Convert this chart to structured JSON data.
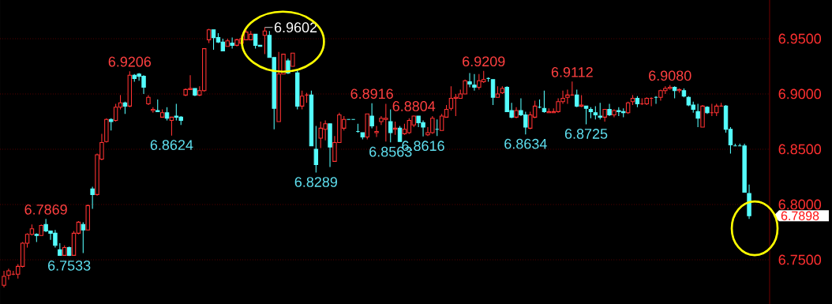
{
  "chart_data": {
    "type": "candlestick",
    "categories": [
      null,
      null,
      null,
      null,
      null,
      null,
      null,
      null,
      null,
      null,
      null,
      null,
      null,
      null,
      null,
      null,
      null,
      null,
      null,
      null,
      null,
      null,
      null,
      null,
      null,
      null,
      null,
      null,
      null,
      null,
      null,
      null,
      null,
      null,
      null,
      null,
      null,
      null,
      null,
      null,
      null,
      null,
      null,
      null,
      null,
      null,
      null,
      null,
      null,
      null,
      null,
      null,
      null,
      null,
      null,
      null,
      null,
      null,
      null,
      null,
      null,
      null,
      null,
      null,
      null,
      null,
      null,
      null,
      null,
      null,
      null,
      null,
      null,
      null,
      null,
      null,
      null,
      null,
      null,
      null,
      null,
      null,
      null,
      null,
      null,
      null,
      null,
      null,
      null,
      null,
      null,
      null,
      null,
      null,
      null,
      null,
      null,
      null,
      null,
      null,
      null,
      null,
      null,
      null,
      null,
      null,
      null,
      null,
      null,
      null,
      null,
      null,
      null,
      null,
      null,
      null,
      null,
      null,
      null,
      null,
      null,
      null,
      null,
      null,
      null,
      null,
      null,
      null,
      null,
      null,
      null,
      null,
      null,
      null,
      null,
      null,
      null,
      null,
      null,
      null,
      null,
      null,
      null,
      null,
      null,
      null,
      null,
      null,
      null,
      null,
      null,
      null,
      null,
      null,
      null,
      null,
      null,
      null,
      null,
      null,
      null
    ],
    "ohlc": [
      [
        6.727,
        6.74,
        6.725,
        6.735
      ],
      [
        6.736,
        6.742,
        6.732,
        6.74
      ],
      [
        6.737,
        6.74,
        6.736,
        6.737
      ],
      [
        6.737,
        6.746,
        6.733,
        6.744
      ],
      [
        6.744,
        6.766,
        6.743,
        6.765
      ],
      [
        6.765,
        6.774,
        6.761,
        6.773
      ],
      [
        6.773,
        6.782,
        6.772,
        6.778
      ],
      [
        6.773,
        6.774,
        6.766,
        6.772
      ],
      [
        6.772,
        6.782,
        6.772,
        6.781
      ],
      [
        6.782,
        6.7869,
        6.775,
        6.776
      ],
      [
        6.776,
        6.776,
        6.768,
        6.774
      ],
      [
        6.774,
        6.777,
        6.761,
        6.763
      ],
      [
        6.759,
        6.765,
        6.754,
        6.754
      ],
      [
        6.754,
        6.763,
        6.754,
        6.761
      ],
      [
        6.761,
        6.762,
        6.7533,
        6.754
      ],
      [
        6.754,
        6.776,
        6.754,
        6.774
      ],
      [
        6.774,
        6.785,
        6.773,
        6.784
      ],
      [
        6.782,
        6.784,
        6.756,
        6.777
      ],
      [
        6.777,
        6.8,
        6.777,
        6.799
      ],
      [
        6.814,
        6.816,
        6.796,
        6.809
      ],
      [
        6.809,
        6.846,
        6.808,
        6.845
      ],
      [
        6.841,
        6.864,
        6.84,
        6.856
      ],
      [
        6.857,
        6.878,
        6.856,
        6.877
      ],
      [
        6.877,
        6.878,
        6.867,
        6.875
      ],
      [
        6.876,
        6.891,
        6.875,
        6.888
      ],
      [
        6.888,
        6.899,
        6.886,
        6.892
      ],
      [
        6.892,
        6.893,
        6.882,
        6.889
      ],
      [
        6.889,
        6.9206,
        6.888,
        6.917
      ],
      [
        6.917,
        6.918,
        6.911,
        6.914
      ],
      [
        6.918,
        6.919,
        6.912,
        6.916
      ],
      [
        6.916,
        6.917,
        6.9,
        6.906
      ],
      [
        6.891,
        6.899,
        6.89,
        6.897
      ],
      [
        6.885,
        6.888,
        6.883,
        6.886
      ],
      [
        6.885,
        6.895,
        6.884,
        6.884
      ],
      [
        6.879,
        6.886,
        6.879,
        6.883
      ],
      [
        6.883,
        6.888,
        6.876,
        6.878
      ],
      [
        6.876,
        6.879,
        6.8624,
        6.879
      ],
      [
        6.88,
        6.891,
        6.876,
        6.879
      ],
      [
        6.879,
        6.88,
        6.872,
        6.876
      ],
      [
        6.899,
        6.905,
        6.898,
        6.904
      ],
      [
        6.904,
        6.917,
        6.904,
        6.905
      ],
      [
        6.905,
        6.905,
        6.898,
        6.899
      ],
      [
        6.899,
        6.907,
        6.898,
        6.903
      ],
      [
        6.903,
        6.941,
        6.902,
        6.941
      ],
      [
        6.949,
        6.959,
        6.946,
        6.958
      ],
      [
        6.958,
        6.958,
        6.94,
        6.951
      ],
      [
        6.951,
        6.955,
        6.946,
        6.947
      ],
      [
        6.947,
        6.95,
        6.939,
        6.939
      ],
      [
        6.943,
        6.95,
        6.943,
        6.948
      ],
      [
        6.946,
        6.951,
        6.941,
        6.944
      ],
      [
        6.944,
        6.95,
        6.943,
        6.949
      ],
      [
        6.946,
        6.953,
        6.945,
        6.95
      ],
      [
        6.949,
        6.958,
        6.949,
        6.956
      ],
      [
        6.949,
        6.957,
        6.949,
        6.954
      ],
      [
        6.954,
        6.954,
        6.941,
        6.944
      ],
      [
        6.944,
        6.944,
        6.943,
        6.943
      ],
      [
        6.953,
        6.9602,
        6.936,
        6.957
      ],
      [
        6.953,
        6.957,
        6.933,
        6.933
      ],
      [
        6.933,
        6.933,
        6.868,
        6.887
      ],
      [
        6.875,
        6.938,
        6.875,
        6.918
      ],
      [
        6.918,
        6.936,
        6.918,
        6.936
      ],
      [
        6.93,
        6.932,
        6.918,
        6.919
      ],
      [
        6.925,
        6.937,
        6.925,
        6.937
      ],
      [
        6.919,
        6.922,
        6.886,
        6.889
      ],
      [
        6.889,
        6.903,
        6.886,
        6.898
      ],
      [
        6.899,
        6.901,
        6.892,
        6.899
      ],
      [
        6.899,
        6.903,
        6.853,
        6.853
      ],
      [
        6.85,
        6.871,
        6.8289,
        6.836
      ],
      [
        6.86,
        6.875,
        6.851,
        6.869
      ],
      [
        6.868,
        6.876,
        6.858,
        6.873
      ],
      [
        6.873,
        6.873,
        6.834,
        6.852
      ],
      [
        6.839,
        6.862,
        6.839,
        6.856
      ],
      [
        6.856,
        6.883,
        6.856,
        6.881
      ],
      [
        6.869,
        6.88,
        6.867,
        6.877
      ],
      [
        6.877,
        6.877,
        6.877,
        6.877
      ],
      [
        6.877,
        6.877,
        6.877,
        6.877
      ],
      [
        6.866,
        6.873,
        6.865,
        6.866
      ],
      [
        6.865,
        6.865,
        6.859,
        6.861
      ],
      [
        6.861,
        6.882,
        6.859,
        6.882
      ],
      [
        6.88,
        6.8916,
        6.869,
        6.871
      ],
      [
        6.865,
        6.871,
        6.861,
        6.866
      ],
      [
        6.875,
        6.88,
        6.872,
        6.878
      ],
      [
        6.877,
        6.891,
        6.857,
        6.878
      ],
      [
        6.875,
        6.886,
        6.8563,
        6.865
      ],
      [
        6.868,
        6.875,
        6.863,
        6.869
      ],
      [
        6.869,
        6.871,
        6.857,
        6.857
      ],
      [
        6.864,
        6.873,
        6.863,
        6.868
      ],
      [
        6.865,
        6.878,
        6.864,
        6.876
      ],
      [
        6.872,
        6.8804,
        6.87,
        6.88
      ],
      [
        6.88,
        6.88,
        6.87,
        6.874
      ],
      [
        6.874,
        6.876,
        6.8616,
        6.87
      ],
      [
        6.863,
        6.87,
        6.862,
        6.865
      ],
      [
        6.865,
        6.88,
        6.864,
        6.878
      ],
      [
        6.868,
        6.877,
        6.862,
        6.868
      ],
      [
        6.867,
        6.882,
        6.867,
        6.88
      ],
      [
        6.879,
        6.89,
        6.879,
        6.886
      ],
      [
        6.887,
        6.907,
        6.885,
        6.896
      ],
      [
        6.896,
        6.9,
        6.88,
        6.897
      ],
      [
        6.896,
        6.904,
        6.896,
        6.9
      ],
      [
        6.9,
        6.913,
        6.9,
        6.912
      ],
      [
        6.911,
        6.919,
        6.906,
        6.909
      ],
      [
        6.908,
        6.918,
        6.903,
        6.906
      ],
      [
        6.906,
        6.918,
        6.904,
        6.912
      ],
      [
        6.911,
        6.9209,
        6.91,
        6.913
      ],
      [
        6.914,
        6.915,
        6.911,
        6.914
      ],
      [
        6.913,
        6.913,
        6.89,
        6.897
      ],
      [
        6.897,
        6.907,
        6.897,
        6.9
      ],
      [
        6.901,
        6.907,
        6.9,
        6.905
      ],
      [
        6.906,
        6.907,
        6.884,
        6.884
      ],
      [
        6.885,
        6.892,
        6.878,
        6.879
      ],
      [
        6.879,
        6.888,
        6.878,
        6.885
      ],
      [
        6.885,
        6.896,
        6.88,
        6.881
      ],
      [
        6.881,
        6.884,
        6.8634,
        6.87
      ],
      [
        6.869,
        6.884,
        6.868,
        6.881
      ],
      [
        6.879,
        6.894,
        6.878,
        6.889
      ],
      [
        6.888,
        6.895,
        6.887,
        6.888
      ],
      [
        6.887,
        6.903,
        6.883,
        6.884
      ],
      [
        6.883,
        6.887,
        6.883,
        6.884
      ],
      [
        6.883,
        6.887,
        6.883,
        6.884
      ],
      [
        6.884,
        6.896,
        6.883,
        6.893
      ],
      [
        6.893,
        6.903,
        6.891,
        6.896
      ],
      [
        6.897,
        6.904,
        6.891,
        6.899
      ],
      [
        6.899,
        6.9112,
        6.899,
        6.899
      ],
      [
        6.899,
        6.904,
        6.888,
        6.889
      ],
      [
        6.889,
        6.899,
        6.888,
        6.89
      ],
      [
        6.889,
        6.889,
        6.8725,
        6.887
      ],
      [
        6.886,
        6.888,
        6.878,
        6.884
      ],
      [
        6.883,
        6.889,
        6.877,
        6.881
      ],
      [
        6.88,
        6.892,
        6.877,
        6.879
      ],
      [
        6.879,
        6.886,
        6.875,
        6.886
      ],
      [
        6.886,
        6.891,
        6.88,
        6.881
      ],
      [
        6.881,
        6.886,
        6.879,
        6.885
      ],
      [
        6.885,
        6.888,
        6.88,
        6.884
      ],
      [
        6.884,
        6.887,
        6.879,
        6.883
      ],
      [
        6.883,
        6.893,
        6.882,
        6.892
      ],
      [
        6.893,
        6.899,
        6.89,
        6.896
      ],
      [
        6.896,
        6.898,
        6.888,
        6.891
      ],
      [
        6.891,
        6.896,
        6.89,
        6.891
      ],
      [
        6.891,
        6.897,
        6.89,
        6.896
      ],
      [
        6.896,
        6.897,
        6.889,
        6.896
      ],
      [
        6.897,
        6.898,
        6.891,
        6.897
      ],
      [
        6.897,
        6.904,
        6.894,
        6.903
      ],
      [
        6.903,
        6.907,
        6.9,
        6.905
      ],
      [
        6.905,
        6.908,
        6.904,
        6.906
      ],
      [
        6.906,
        6.907,
        6.896,
        6.903
      ],
      [
        6.903,
        6.905,
        6.901,
        6.904
      ],
      [
        6.903,
        6.905,
        6.897,
        6.898
      ],
      [
        6.897,
        6.898,
        6.889,
        6.89
      ],
      [
        6.89,
        6.893,
        6.883,
        6.886
      ],
      [
        6.884,
        6.891,
        6.87,
        6.878
      ],
      [
        6.87,
        6.89,
        6.87,
        6.889
      ],
      [
        6.888,
        6.889,
        6.882,
        6.883
      ],
      [
        6.883,
        6.891,
        6.88,
        6.883
      ],
      [
        6.883,
        6.891,
        6.88,
        6.889
      ],
      [
        6.889,
        6.892,
        6.889,
        6.889
      ],
      [
        6.889,
        6.89,
        6.865,
        6.868
      ],
      [
        6.868,
        6.87,
        6.846,
        6.854
      ],
      [
        6.853,
        6.855,
        6.853,
        6.853
      ],
      [
        6.853,
        6.855,
        6.853,
        6.853
      ],
      [
        6.853,
        6.855,
        6.811,
        6.811
      ],
      [
        6.81,
        6.818,
        6.787,
        6.7898
      ]
    ],
    "colors": [
      "#ff3232",
      "#ff3232",
      "#ff3232",
      "#ff3232",
      "#ff3232",
      "#ff3232",
      "#ff3232",
      "#54fcfc",
      "#ff3232",
      "#54fcfc",
      "#54fcfc",
      "#54fcfc",
      "#54fcfc",
      "#ff3232",
      "#54fcfc",
      "#ff3232",
      "#ff3232",
      "#54fcfc",
      "#ff3232",
      "#54fcfc",
      "#ff3232",
      "#ff3232",
      "#ff3232",
      "#54fcfc",
      "#ff3232",
      "#ff3232",
      "#54fcfc",
      "#ff3232",
      "#54fcfc",
      "#54fcfc",
      "#54fcfc",
      "#ff3232",
      "#ff3232",
      "#54fcfc",
      "#ff3232",
      "#54fcfc",
      "#ff3232",
      "#54fcfc",
      "#54fcfc",
      "#ff3232",
      "#ff3232",
      "#54fcfc",
      "#ff3232",
      "#ff3232",
      "#ff3232",
      "#54fcfc",
      "#54fcfc",
      "#54fcfc",
      "#ff3232",
      "#54fcfc",
      "#ff3232",
      "#ff3232",
      "#ff3232",
      "#ff3232",
      "#54fcfc",
      "#54fcfc",
      "#ff3232",
      "#54fcfc",
      "#54fcfc",
      "#ff3232",
      "#ff3232",
      "#54fcfc",
      "#ff3232",
      "#54fcfc",
      "#ff3232",
      "#ff3232",
      "#54fcfc",
      "#54fcfc",
      "#ff3232",
      "#ff3232",
      "#54fcfc",
      "#ff3232",
      "#ff3232",
      "#ff3232",
      "#54fcfc",
      "#54fcfc",
      "#54fcfc",
      "#54fcfc",
      "#ff3232",
      "#54fcfc",
      "#ff3232",
      "#ff3232",
      "#ff3232",
      "#54fcfc",
      "#ff3232",
      "#54fcfc",
      "#ff3232",
      "#ff3232",
      "#ff3232",
      "#54fcfc",
      "#54fcfc",
      "#ff3232",
      "#ff3232",
      "#54fcfc",
      "#ff3232",
      "#ff3232",
      "#ff3232",
      "#ff3232",
      "#ff3232",
      "#ff3232",
      "#54fcfc",
      "#54fcfc",
      "#ff3232",
      "#ff3232",
      "#54fcfc",
      "#54fcfc",
      "#ff3232",
      "#ff3232",
      "#54fcfc",
      "#54fcfc",
      "#ff3232",
      "#54fcfc",
      "#54fcfc",
      "#ff3232",
      "#ff3232",
      "#54fcfc",
      "#54fcfc",
      "#ff3232",
      "#ff3232",
      "#ff3232",
      "#ff3232",
      "#ff3232",
      "#ff3232",
      "#54fcfc",
      "#ff3232",
      "#54fcfc",
      "#54fcfc",
      "#54fcfc",
      "#54fcfc",
      "#ff3232",
      "#54fcfc",
      "#ff3232",
      "#54fcfc",
      "#54fcfc",
      "#ff3232",
      "#ff3232",
      "#54fcfc",
      "#ff3232",
      "#ff3232",
      "#ff3232",
      "#54fcfc",
      "#ff3232",
      "#ff3232",
      "#ff3232",
      "#54fcfc",
      "#ff3232",
      "#54fcfc",
      "#54fcfc",
      "#54fcfc",
      "#54fcfc",
      "#ff3232",
      "#54fcfc",
      "#ff3232",
      "#ff3232",
      "#ff3232",
      "#54fcfc",
      "#54fcfc",
      "#54fcfc",
      "#54fcfc",
      "#54fcfc",
      "#54fcfc"
    ],
    "ylim": [
      6.71,
      6.985
    ],
    "yticks": [
      {
        "value": 6.75,
        "label": "6.7500"
      },
      {
        "value": 6.8,
        "label": "6.8000"
      },
      {
        "value": 6.85,
        "label": "6.8500"
      },
      {
        "value": 6.9,
        "label": "6.9000"
      },
      {
        "value": 6.95,
        "label": "6.9500"
      }
    ],
    "grid": "y",
    "annotations": [
      "6.9602",
      {
        "text": "6.9206",
        "y": 6.9206
      },
      {
        "text": "6.7869",
        "y": 6.7869
      },
      {
        "text": "6.8624",
        "y": 6.8624
      },
      {
        "text": "6.7533",
        "y": 6.7533
      },
      {
        "text": "6.8289",
        "y": 6.8289
      },
      {
        "text": "6.8916",
        "y": 6.8916
      },
      {
        "text": "6.8804",
        "y": 6.8804
      },
      {
        "text": "6.8563",
        "y": 6.8563
      },
      {
        "text": "6.8616",
        "y": 6.8616
      },
      {
        "text": "6.9209",
        "y": 6.9209
      },
      {
        "text": "6.8634",
        "y": 6.8634
      },
      {
        "text": "6.9112",
        "y": 6.9112
      },
      {
        "text": "6.8725",
        "y": 6.8725
      },
      {
        "text": "6.9080",
        "y": 6.908
      },
      "6.7898"
    ]
  }
}
